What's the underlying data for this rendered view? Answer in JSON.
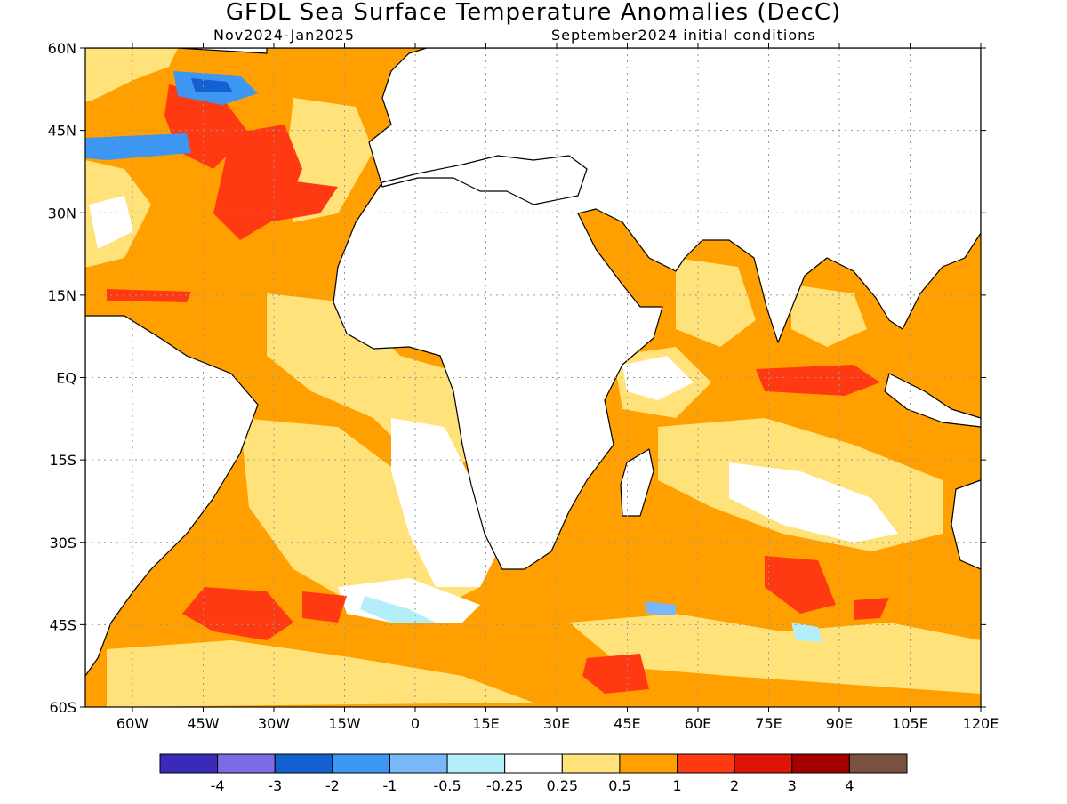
{
  "chart_data": {
    "type": "heatmap",
    "title": "GFDL Sea Surface Temperature Anomalies (DecC)",
    "subtitle_left": "Nov2024-Jan2025",
    "subtitle_right": "September2024 initial conditions",
    "x_ticks": [
      "60W",
      "45W",
      "30W",
      "15W",
      "0",
      "15E",
      "30E",
      "45E",
      "60E",
      "75E",
      "90E",
      "105E",
      "120E"
    ],
    "x_tick_values": [
      -60,
      -45,
      -30,
      -15,
      0,
      15,
      30,
      45,
      60,
      75,
      90,
      105,
      120
    ],
    "y_ticks": [
      "60N",
      "45N",
      "30N",
      "15N",
      "EQ",
      "15S",
      "30S",
      "45S",
      "60S"
    ],
    "y_tick_values": [
      60,
      45,
      30,
      15,
      0,
      -15,
      -30,
      -45,
      -60
    ],
    "xlim": [
      -70,
      120
    ],
    "ylim": [
      -60,
      60
    ],
    "grid": true,
    "colorbar": {
      "boundaries": [
        "-4",
        "-3",
        "-2",
        "-1",
        "-0.5",
        "-0.25",
        "0.25",
        "0.5",
        "1",
        "2",
        "3",
        "4"
      ],
      "colors": [
        "#3a2ab8",
        "#7a6ce6",
        "#1560d0",
        "#3d96f2",
        "#78b8f6",
        "#b4eef8",
        "#ffffff",
        "#ffe27a",
        "#ffa000",
        "#ff3a12",
        "#dd1608",
        "#a50000",
        "#7a5040"
      ]
    },
    "field_colors": {
      "base_ocean": "#ffa000",
      "weak": "#ffe27a",
      "near_zero": "#ffffff",
      "strong": "#ff3a12",
      "cold": "#3d96f2",
      "very_cold": "#1560d0",
      "slight_cold": "#b4eef8",
      "land": "#ffffff"
    }
  }
}
